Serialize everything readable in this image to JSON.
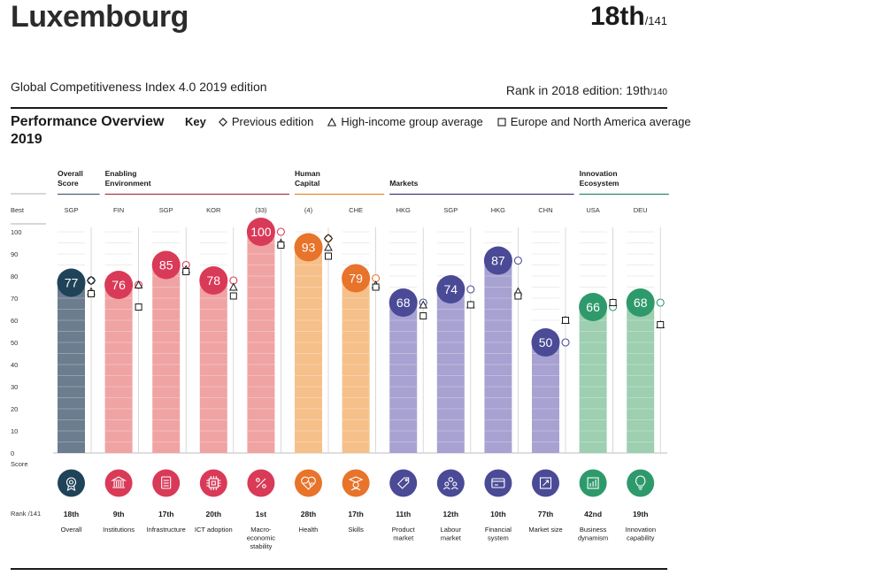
{
  "header": {
    "country": "Luxembourg",
    "rank": "18th",
    "rank_total": "/141",
    "edition": "Global Competitiveness Index 4.0 2019 edition",
    "prev_rank_label": "Rank in 2018 edition: 19th",
    "prev_rank_total": "/140"
  },
  "overview": {
    "title": "Performance Overview 2019",
    "key_label": "Key",
    "legend": [
      {
        "symbol": "diamond",
        "label": "Previous edition"
      },
      {
        "symbol": "triangle",
        "label": "High-income group average"
      },
      {
        "symbol": "square",
        "label": "Europe and North America average"
      }
    ]
  },
  "chart_data": {
    "type": "bar",
    "ylim": [
      0,
      100
    ],
    "yticks": [
      0,
      10,
      20,
      30,
      40,
      50,
      60,
      70,
      80,
      90,
      100
    ],
    "best_label": "Best",
    "score_label": "Score",
    "rank_label": "Rank /141",
    "groups": [
      {
        "name": "Overall Score",
        "color": "#4c6274",
        "start": 0,
        "end": 0
      },
      {
        "name": "Enabling Environment",
        "color": "#a33b49",
        "start": 1,
        "end": 4
      },
      {
        "name": "Human Capital",
        "color": "#e58a2f",
        "start": 5,
        "end": 6
      },
      {
        "name": "Markets",
        "color": "#3f3c78",
        "start": 7,
        "end": 10
      },
      {
        "name": "Innovation Ecosystem",
        "color": "#2e8a61",
        "start": 11,
        "end": 12
      }
    ],
    "pillars": [
      {
        "name": "Overall",
        "best": "SGP",
        "score": 77,
        "label": "77",
        "rank": "18th",
        "prev": 78,
        "hi": 73,
        "ena": 72,
        "bar": "#6b7d8e",
        "circle": "#1f4359",
        "icon": "medal-icon"
      },
      {
        "name": "Institutions",
        "best": "FIN",
        "score": 76,
        "label": "76",
        "rank": "9th",
        "prev": 76,
        "hi": 76,
        "ena": 66,
        "bar": "#f0a3a3",
        "circle": "#d93a58",
        "icon": "institution-icon"
      },
      {
        "name": "Infrastructure",
        "best": "SGP",
        "score": 85,
        "label": "85",
        "rank": "17th",
        "prev": 85,
        "hi": 83,
        "ena": 82,
        "bar": "#f0a3a3",
        "circle": "#d93a58",
        "icon": "infrastructure-icon"
      },
      {
        "name": "ICT adoption",
        "best": "KOR",
        "score": 78,
        "label": "78",
        "rank": "20th",
        "prev": 78,
        "hi": 75,
        "ena": 71,
        "bar": "#f0a3a3",
        "circle": "#d93a58",
        "icon": "chip-icon"
      },
      {
        "name": "Macro-economic stability",
        "best": "(33)",
        "score": 100,
        "label": "100",
        "rank": "1st",
        "prev": 100,
        "hi": 95,
        "ena": 94,
        "bar": "#f0a3a3",
        "circle": "#d93a58",
        "icon": "percent-icon"
      },
      {
        "name": "Health",
        "best": "(4)",
        "score": 93,
        "label": "93",
        "rank": "28th",
        "prev": 97,
        "hi": 93,
        "ena": 89,
        "bar": "#f6c08a",
        "circle": "#e8732a",
        "icon": "heartbeat-icon"
      },
      {
        "name": "Skills",
        "best": "CHE",
        "score": 79,
        "label": "79",
        "rank": "17th",
        "prev": 79,
        "hi": 76,
        "ena": 75,
        "bar": "#f6c08a",
        "circle": "#e8732a",
        "icon": "graduate-icon"
      },
      {
        "name": "Product market",
        "best": "HKG",
        "score": 68,
        "label": "68",
        "rank": "11th",
        "prev": 68,
        "hi": 67,
        "ena": 62,
        "bar": "#a7a2d1",
        "circle": "#4a4a96",
        "icon": "tag-icon"
      },
      {
        "name": "Labour market",
        "best": "SGP",
        "score": 74,
        "label": "74",
        "rank": "12th",
        "prev": 74,
        "hi": 67,
        "ena": 67,
        "bar": "#a7a2d1",
        "circle": "#4a4a96",
        "icon": "people-icon"
      },
      {
        "name": "Financial system",
        "best": "HKG",
        "score": 87,
        "label": "87",
        "rank": "10th",
        "prev": 87,
        "hi": 73,
        "ena": 71,
        "bar": "#a7a2d1",
        "circle": "#4a4a96",
        "icon": "card-icon"
      },
      {
        "name": "Market size",
        "best": "CHN",
        "score": 50,
        "label": "50",
        "rank": "77th",
        "prev": 50,
        "hi": 60,
        "ena": 60,
        "bar": "#a7a2d1",
        "circle": "#4a4a96",
        "icon": "expand-icon"
      },
      {
        "name": "Business dynamism",
        "best": "USA",
        "score": 66,
        "label": "66",
        "rank": "42nd",
        "prev": 66,
        "hi": 68,
        "ena": 68,
        "bar": "#9dcfb0",
        "circle": "#2e9a6b",
        "icon": "growth-icon"
      },
      {
        "name": "Innovation capability",
        "best": "DEU",
        "score": 68,
        "label": "68",
        "rank": "19th",
        "prev": 68,
        "hi": 58,
        "ena": 58,
        "bar": "#9dcfb0",
        "circle": "#2e9a6b",
        "icon": "lightbulb-icon"
      }
    ]
  }
}
